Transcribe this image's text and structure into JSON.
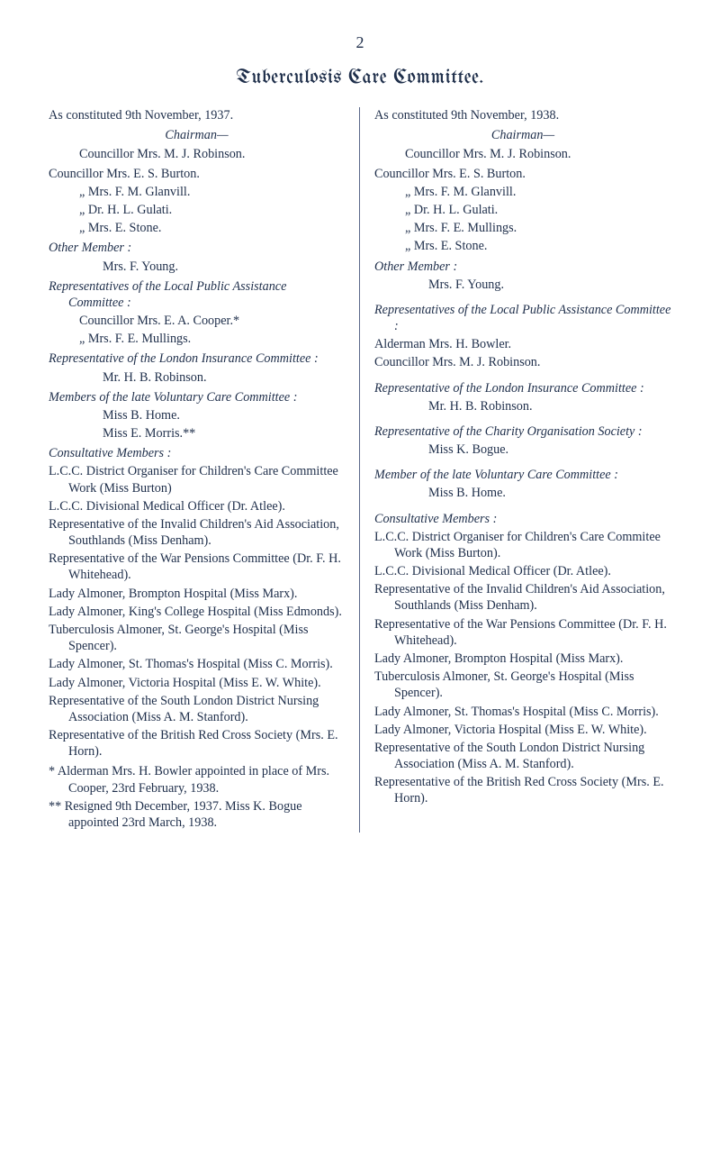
{
  "page_number": "2",
  "title": "Tuberculosis Care Committee.",
  "left": {
    "constituted": "As constituted 9th November, 1937.",
    "chairman_label": "Chairman—",
    "chairman": "Councillor Mrs. M. J. Robinson.",
    "councillors": [
      "Councillor Mrs. E. S. Burton.",
      "„      Mrs. F. M. Glanvill.",
      "„      Dr. H. L. Gulati.",
      "„      Mrs. E. Stone."
    ],
    "other_member_label": "Other Member :",
    "other_member": "Mrs. F. Young.",
    "reps_local_label": "Representatives of the Local Public Assistance Committee :",
    "reps_local_members": [
      "Councillor Mrs. E. A. Cooper.*",
      "„      Mrs. F. E. Mullings."
    ],
    "rep_london_label": "Representative of the London Insurance Committee :",
    "rep_london_member": "Mr. H. B. Robinson.",
    "members_late_label": "Members of the late Voluntary Care Committee :",
    "members_late": [
      "Miss B. Home.",
      "Miss E. Morris.**"
    ],
    "consultative_label": "Consultative Members :",
    "consultative": [
      "L.C.C. District Organiser for Children's Care Committee Work (Miss Burton)",
      "L.C.C. Divisional Medical Officer (Dr. Atlee).",
      "Representative of the Invalid Children's Aid Association, Southlands (Miss Denham).",
      "Representative of the War Pensions Committee (Dr. F. H. Whitehead).",
      "Lady Almoner, Brompton Hospital (Miss Marx).",
      "Lady Almoner, King's College Hospital (Miss Edmonds).",
      "Tuberculosis Almoner, St. George's Hospital (Miss Spencer).",
      "Lady Almoner, St. Thomas's Hospital (Miss C. Morris).",
      "Lady Almoner, Victoria Hospital (Miss E. W. White).",
      "Representative of the South London District Nursing Association (Miss A. M. Stanford).",
      "Representative of the British Red Cross Society (Mrs. E. Horn)."
    ],
    "footnotes": [
      "* Alderman Mrs. H. Bowler appointed in place of Mrs. Cooper, 23rd February, 1938.",
      "** Resigned 9th December, 1937. Miss K. Bogue appointed 23rd March, 1938."
    ]
  },
  "right": {
    "constituted": "As constituted 9th November, 1938.",
    "chairman_label": "Chairman—",
    "chairman": "Councillor Mrs. M. J. Robinson.",
    "councillors": [
      "Councillor Mrs. E. S. Burton.",
      "„      Mrs. F. M. Glanvill.",
      "„      Dr. H. L. Gulati.",
      "„      Mrs. F. E. Mullings.",
      "„      Mrs. E. Stone."
    ],
    "other_member_label": "Other Member :",
    "other_member": "Mrs. F. Young.",
    "reps_local_label": "Representatives of the Local Public Assistance Committee :",
    "reps_local_members": [
      "Alderman Mrs. H. Bowler.",
      "Councillor Mrs. M. J. Robinson."
    ],
    "rep_london_label": "Representative of the London Insurance Committee :",
    "rep_london_member": "Mr. H. B. Robinson.",
    "rep_charity_label": "Representative of the Charity Organisation Society :",
    "rep_charity_member": "Miss K. Bogue.",
    "member_late_label": "Member of the late Voluntary Care Committee :",
    "member_late": "Miss B. Home.",
    "consultative_label": "Consultative Members :",
    "consultative": [
      "L.C.C. District Organiser for Children's Care Commitee Work (Miss Burton).",
      "L.C.C. Divisional Medical Officer (Dr. Atlee).",
      "Representative of the Invalid Children's Aid Association, Southlands (Miss Denham).",
      "Representative of the War Pensions Committee (Dr. F. H. Whitehead).",
      "Lady Almoner, Brompton Hospital (Miss Marx).",
      "Tuberculosis Almoner, St. George's Hospital (Miss Spencer).",
      "Lady Almoner, St. Thomas's Hospital (Miss C. Morris).",
      "Lady Almoner, Victoria Hospital (Miss E. W. White).",
      "Representative of the South London District Nursing Association (Miss A. M. Stanford).",
      "Representative of the British Red Cross Society (Mrs. E. Horn)."
    ]
  }
}
